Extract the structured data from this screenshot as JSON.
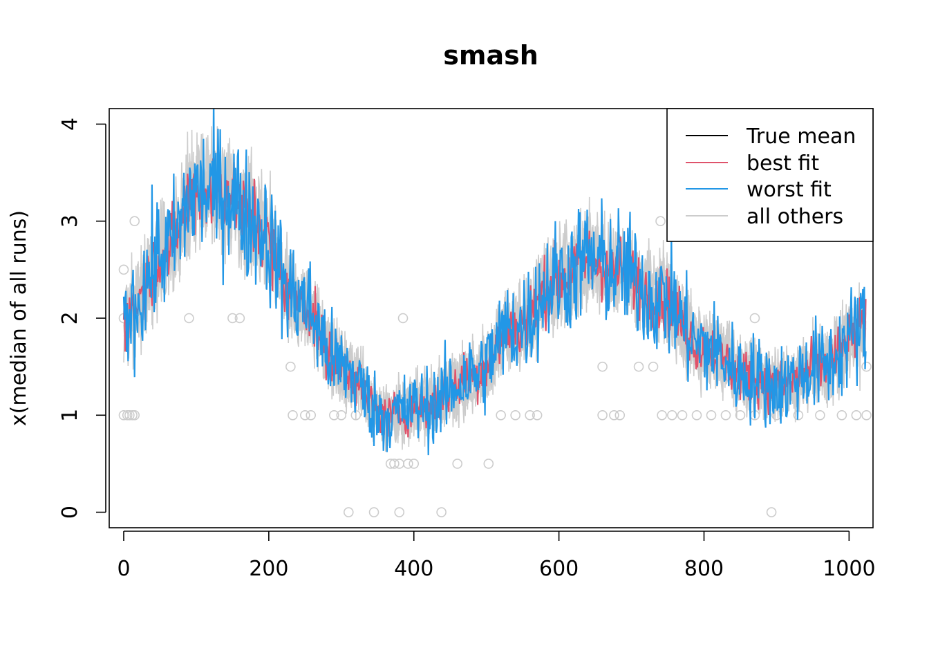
{
  "chart_data": {
    "type": "line",
    "title": "smash",
    "xlabel": "",
    "ylabel": "x(median of all runs)",
    "xlim": [
      -20,
      1033
    ],
    "ylim": [
      -0.16,
      4.16
    ],
    "xticks": [
      0,
      200,
      400,
      600,
      800,
      1000
    ],
    "yticks": [
      0,
      1,
      2,
      3,
      4
    ],
    "n": 1024,
    "legend": {
      "position": "top-right",
      "entries": [
        {
          "label": "True mean",
          "color": "#000000"
        },
        {
          "label": "best fit",
          "color": "#DF536B"
        },
        {
          "label": "worst fit",
          "color": "#2297E6"
        },
        {
          "label": "all others",
          "color": "#CCCCCC"
        }
      ]
    },
    "true_mean_knots": {
      "x": [
        0,
        60,
        100,
        140,
        180,
        240,
        300,
        360,
        420,
        480,
        540,
        600,
        640,
        680,
        740,
        800,
        860,
        900,
        960,
        1023
      ],
      "y": [
        2.0,
        2.7,
        3.3,
        3.3,
        3.0,
        2.2,
        1.5,
        1.0,
        1.1,
        1.4,
        1.9,
        2.4,
        2.6,
        2.5,
        2.2,
        1.7,
        1.4,
        1.3,
        1.5,
        1.9
      ]
    },
    "observations": {
      "x": [
        0,
        5,
        8,
        12,
        15,
        310,
        345,
        380,
        438,
        893,
        368,
        373,
        380,
        392,
        400,
        460,
        503,
        233,
        250,
        258,
        660,
        676,
        684,
        742,
        756,
        770,
        790,
        810,
        830,
        850,
        870,
        900,
        930,
        960,
        990,
        1010,
        1024,
        290,
        300,
        320,
        520,
        540,
        560,
        570,
        0,
        90,
        150,
        160,
        385,
        230,
        660,
        710,
        730,
        1024,
        0,
        15,
        740,
        870
      ],
      "y": [
        1,
        1,
        1,
        1,
        1,
        0,
        0,
        0,
        0,
        0,
        0.5,
        0.5,
        0.5,
        0.5,
        0.5,
        0.5,
        0.5,
        1,
        1,
        1,
        1,
        1,
        1,
        1,
        1,
        1,
        1,
        1,
        1,
        1,
        1,
        1,
        1,
        1,
        1,
        1,
        1,
        1,
        1,
        1,
        1,
        1,
        1,
        1,
        2,
        2,
        2,
        2,
        2,
        1.5,
        1.5,
        1.5,
        1.5,
        1.5,
        2.5,
        3,
        3,
        2
      ]
    }
  }
}
